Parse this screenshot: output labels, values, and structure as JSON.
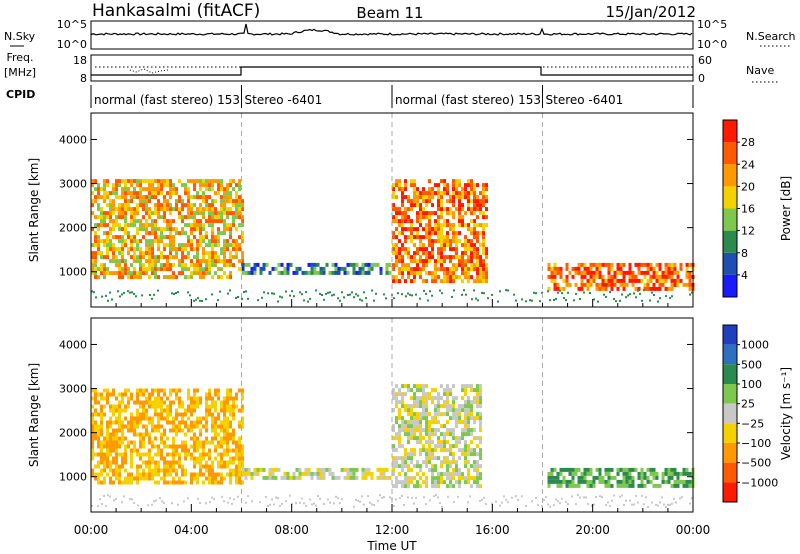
{
  "header": {
    "station": "Hankasalmi (fitACF)",
    "beam": "Beam 11",
    "date": "15/Jan/2012"
  },
  "strip_nsky": {
    "label": "N.Sky",
    "right_label": "N.Search",
    "ticks_left": [
      "10^5",
      "10^0"
    ],
    "ticks_right": [
      "10^5",
      "10^0"
    ]
  },
  "strip_freq": {
    "label_line1": "Freq.",
    "label_line2": "[MHz]",
    "ticks_left": [
      "18",
      "8"
    ],
    "right_label": "Nave",
    "ticks_right": [
      "60",
      "0"
    ]
  },
  "cpid": {
    "label": "CPID",
    "segments": [
      {
        "text": "normal (fast stereo) 153",
        "start": 0,
        "end": 6
      },
      {
        "text": "Stereo -6401",
        "start": 6,
        "end": 12
      },
      {
        "text": "normal (fast stereo) 153",
        "start": 12,
        "end": 18
      },
      {
        "text": "Stereo -6401",
        "start": 18,
        "end": 24
      }
    ]
  },
  "x_axis": {
    "label": "Time UT",
    "ticks": [
      "00:00",
      "04:00",
      "08:00",
      "12:00",
      "16:00",
      "20:00",
      "00:00"
    ]
  },
  "chart_data": [
    {
      "type": "heatmap",
      "ylabel": "Slant Range [km]",
      "yticks": [
        "1000",
        "2000",
        "3000",
        "4000"
      ],
      "ylim": [
        200,
        4600
      ],
      "xlim": [
        0,
        24
      ],
      "colorbar": {
        "label": "Power [dB]",
        "ticks": [
          "4",
          "8",
          "12",
          "16",
          "20",
          "24",
          "28"
        ],
        "colors": [
          "#1a1aff",
          "#1f4fb5",
          "#2d8a4e",
          "#7ec850",
          "#f5d100",
          "#ff9900",
          "#ff5a00",
          "#ff1a00"
        ]
      },
      "regions": [
        {
          "t0": 0.0,
          "t1": 6.0,
          "r0": 900,
          "r1": 3100,
          "value": 20
        },
        {
          "t0": 6.0,
          "t1": 12.0,
          "r0": 950,
          "r1": 1200,
          "value": 8
        },
        {
          "t0": 12.0,
          "t1": 15.8,
          "r0": 800,
          "r1": 3100,
          "value": 24
        },
        {
          "t0": 18.2,
          "t1": 24.0,
          "r0": 650,
          "r1": 1200,
          "value": 26
        }
      ]
    },
    {
      "type": "heatmap",
      "ylabel": "Slant Range [km]",
      "yticks": [
        "1000",
        "2000",
        "3000",
        "4000"
      ],
      "ylim": [
        200,
        4600
      ],
      "xlim": [
        0,
        24
      ],
      "colorbar": {
        "label": "Velocity [m s⁻¹]",
        "ticks": [
          "1000",
          "500",
          "100",
          "25",
          "−25",
          "−100",
          "−500",
          "−1000"
        ],
        "colors": [
          "#1f3fbf",
          "#2f6fbf",
          "#2d8a4e",
          "#7ec850",
          "#c8c8c8",
          "#f5d100",
          "#ff9900",
          "#ff5a00",
          "#ff1a00"
        ]
      },
      "regions": [
        {
          "t0": 0.0,
          "t1": 6.0,
          "r0": 900,
          "r1": 3000,
          "value": -100
        },
        {
          "t0": 6.0,
          "t1": 12.0,
          "r0": 950,
          "r1": 1200,
          "value": 0
        },
        {
          "t0": 12.0,
          "t1": 15.5,
          "r0": 800,
          "r1": 3100,
          "value": 0
        },
        {
          "t0": 18.2,
          "t1": 24.0,
          "r0": 750,
          "r1": 1200,
          "value": 100
        }
      ]
    }
  ]
}
